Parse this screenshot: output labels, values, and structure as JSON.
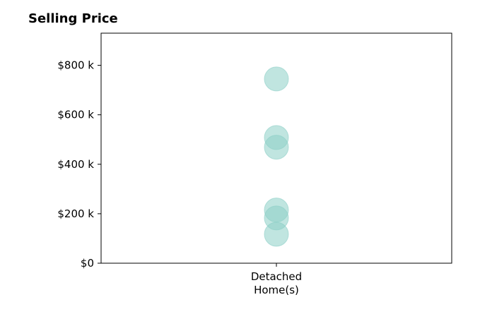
{
  "chart_data": {
    "type": "scatter",
    "title": "Selling Price",
    "xlabel": "",
    "ylabel": "",
    "categories": [
      [
        "Detached",
        "Home(s)"
      ]
    ],
    "ylim": [
      0,
      930000
    ],
    "yticks": [
      {
        "value": 0,
        "label": "$0"
      },
      {
        "value": 200000,
        "label": "$200 k"
      },
      {
        "value": 400000,
        "label": "$400 k"
      },
      {
        "value": 600000,
        "label": "$600 k"
      },
      {
        "value": 800000,
        "label": "$800 k"
      }
    ],
    "points": [
      {
        "category": 0,
        "y": 745000
      },
      {
        "category": 0,
        "y": 508000
      },
      {
        "category": 0,
        "y": 469000
      },
      {
        "category": 0,
        "y": 215000
      },
      {
        "category": 0,
        "y": 183000
      },
      {
        "category": 0,
        "y": 117000
      }
    ],
    "marker_color": "#8ccfc6",
    "marker_alpha": 0.55,
    "grid": false,
    "legend": "none"
  }
}
